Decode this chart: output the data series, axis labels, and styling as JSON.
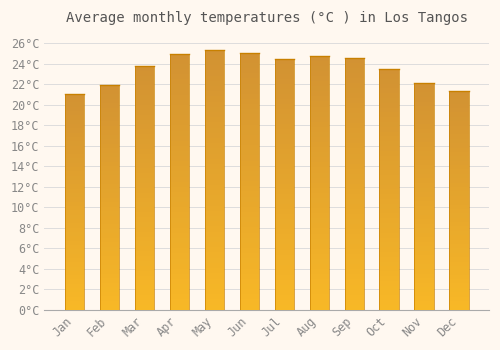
{
  "title": "Average monthly temperatures (°C ) in Los Tangos",
  "months": [
    "Jan",
    "Feb",
    "Mar",
    "Apr",
    "May",
    "Jun",
    "Jul",
    "Aug",
    "Sep",
    "Oct",
    "Nov",
    "Dec"
  ],
  "values": [
    21.1,
    21.9,
    23.8,
    25.0,
    25.4,
    25.1,
    24.5,
    24.8,
    24.6,
    23.5,
    22.1,
    21.4
  ],
  "bar_color_top": "#F5A800",
  "bar_color_bottom": "#FFD060",
  "bar_edge_color": "#C88000",
  "background_color": "#FFF8F0",
  "plot_bg_color": "#FFF8F0",
  "grid_color": "#DDDDDD",
  "title_color": "#555555",
  "tick_label_color": "#888888",
  "ylim": [
    0,
    27
  ],
  "ytick_step": 2,
  "title_fontsize": 10,
  "tick_fontsize": 8.5
}
